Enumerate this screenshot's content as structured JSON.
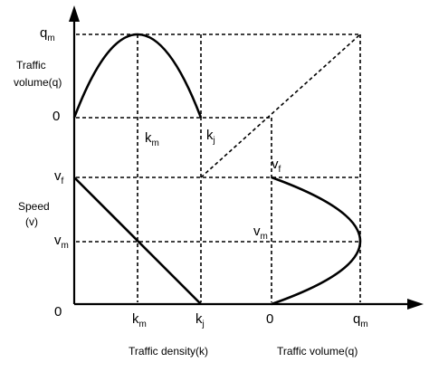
{
  "labels": {
    "q_m": "q",
    "q_m_sub": "m",
    "traffic_volume_q_1": "Traffic",
    "traffic_volume_q_2": "volume(q)",
    "zero_top": "0",
    "k_m": "k",
    "k_m_sub": "m",
    "k_j": "k",
    "k_j_sub": "j",
    "v_f_left": "v",
    "v_f_left_sub": "f",
    "speed_1": "Speed",
    "speed_2": "(v)",
    "v_m_left": "v",
    "v_m_left_sub": "m",
    "v_f_right": "v",
    "v_f_right_sub": "f",
    "v_m_right": "v",
    "v_m_right_sub": "m",
    "zero_origin": "0",
    "k_m_bottom": "k",
    "k_m_bottom_sub": "m",
    "k_j_bottom": "k",
    "k_j_bottom_sub": "j",
    "zero_bottom": "0",
    "q_m_bottom": "q",
    "q_m_bottom_sub": "m",
    "x_axis_density": "Traffic density(k)",
    "x_axis_volume": "Traffic volume(q)"
  }
}
